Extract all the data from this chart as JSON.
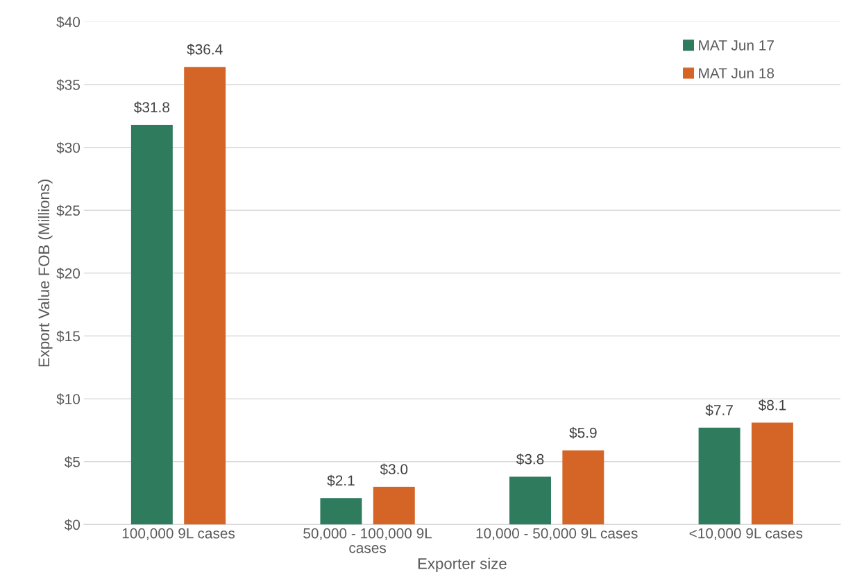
{
  "chart_data": {
    "type": "bar",
    "xlabel": "Exporter size",
    "ylabel": "Export Value FOB (Millions)",
    "categories": [
      "100,000 9L cases",
      "50,000 - 100,000 9L cases",
      "10,000 - 50,000 9L cases",
      "<10,000 9L cases"
    ],
    "series": [
      {
        "name": "MAT Jun 17",
        "color": "#2e7b5e",
        "values": [
          31.8,
          2.1,
          3.8,
          7.7
        ],
        "value_labels": [
          "$31.8",
          "$2.1",
          "$3.8",
          "$7.7"
        ]
      },
      {
        "name": "MAT Jun 18",
        "color": "#d56527",
        "values": [
          36.4,
          3.0,
          5.9,
          8.1
        ],
        "value_labels": [
          "$36.4",
          "$3.0",
          "$5.9",
          "$8.1"
        ]
      }
    ],
    "ylim": [
      0,
      40
    ],
    "yticks": [
      {
        "value": 0,
        "label": "$0"
      },
      {
        "value": 5,
        "label": "$5"
      },
      {
        "value": 10,
        "label": "$10"
      },
      {
        "value": 15,
        "label": "$15"
      },
      {
        "value": 20,
        "label": "$20"
      },
      {
        "value": 25,
        "label": "$25"
      },
      {
        "value": 30,
        "label": "$30"
      },
      {
        "value": 35,
        "label": "$35"
      },
      {
        "value": 40,
        "label": "$40"
      }
    ],
    "grid": "y",
    "legend": "top right"
  }
}
